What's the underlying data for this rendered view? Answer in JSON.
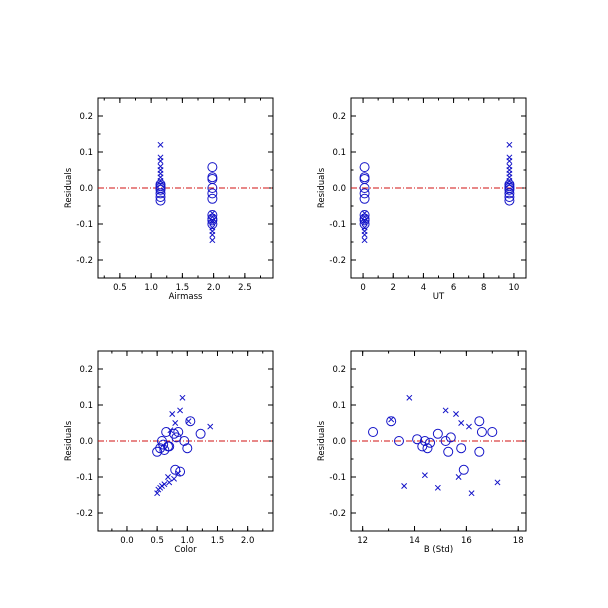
{
  "colors": {
    "marker": "#1414c8",
    "zero_line": "#d01010",
    "axis": "#000000"
  },
  "chart_data": [
    {
      "type": "scatter",
      "xlabel": "Airmass",
      "ylabel": "Residuals",
      "xlim": [
        0.15,
        2.95
      ],
      "ylim": [
        -0.25,
        0.25
      ],
      "xticks": [
        0.5,
        1.0,
        1.5,
        2.0,
        2.5
      ],
      "xtick_labels": [
        "0.5",
        "1.0",
        "1.5",
        "2.0",
        "2.5"
      ],
      "yticks": [
        -0.2,
        -0.1,
        0.0,
        0.1,
        0.2
      ],
      "ytick_labels": [
        "-0.2",
        "-0.1",
        "0.0",
        "0.1",
        "0.2"
      ],
      "reference_line_y": 0.0,
      "series": [
        {
          "marker": "x",
          "x": [
            1.15,
            1.15,
            1.15,
            1.15,
            1.15,
            1.15,
            1.15,
            1.15,
            1.15,
            1.98,
            1.98,
            1.98,
            1.98,
            1.98,
            1.98,
            1.98,
            1.98
          ],
          "y": [
            0.12,
            0.085,
            0.075,
            0.06,
            0.05,
            0.04,
            0.03,
            0.02,
            0.01,
            -0.145,
            -0.13,
            -0.12,
            -0.11,
            -0.095,
            -0.09,
            -0.08,
            -0.07
          ]
        },
        {
          "marker": "o",
          "x": [
            1.15,
            1.15,
            1.15,
            1.15,
            1.15,
            1.15,
            1.15,
            1.98,
            1.98,
            1.98,
            1.98,
            1.98,
            1.98,
            1.98,
            1.98,
            1.98,
            1.98
          ],
          "y": [
            0.01,
            0.005,
            0.0,
            -0.005,
            -0.015,
            -0.025,
            -0.035,
            0.058,
            0.03,
            0.025,
            0.0,
            -0.015,
            -0.03,
            -0.075,
            -0.085,
            -0.09,
            -0.1
          ]
        }
      ]
    },
    {
      "type": "scatter",
      "xlabel": "UT",
      "ylabel": "Residuals",
      "xlim": [
        -0.8,
        10.8
      ],
      "ylim": [
        -0.25,
        0.25
      ],
      "xticks": [
        0,
        2,
        4,
        6,
        8,
        10
      ],
      "xtick_labels": [
        "0",
        "2",
        "4",
        "6",
        "8",
        "10"
      ],
      "yticks": [
        -0.2,
        -0.1,
        0.0,
        0.1,
        0.2
      ],
      "ytick_labels": [
        "-0.2",
        "-0.1",
        "0.0",
        "0.1",
        "0.2"
      ],
      "reference_line_y": 0.0,
      "series": [
        {
          "marker": "x",
          "x": [
            9.7,
            9.7,
            9.7,
            9.7,
            9.7,
            9.7,
            9.7,
            9.7,
            9.7,
            0.1,
            0.1,
            0.1,
            0.1,
            0.1,
            0.1,
            0.1,
            0.1
          ],
          "y": [
            0.12,
            0.085,
            0.075,
            0.06,
            0.05,
            0.04,
            0.03,
            0.02,
            0.01,
            -0.145,
            -0.13,
            -0.12,
            -0.11,
            -0.095,
            -0.09,
            -0.08,
            -0.07
          ]
        },
        {
          "marker": "o",
          "x": [
            9.7,
            9.7,
            9.7,
            9.7,
            9.7,
            9.7,
            9.7,
            0.1,
            0.1,
            0.1,
            0.1,
            0.1,
            0.1,
            0.1,
            0.1,
            0.1,
            0.1
          ],
          "y": [
            0.01,
            0.005,
            0.0,
            -0.005,
            -0.015,
            -0.025,
            -0.035,
            0.058,
            0.03,
            0.025,
            0.0,
            -0.015,
            -0.03,
            -0.075,
            -0.085,
            -0.09,
            -0.1
          ]
        }
      ]
    },
    {
      "type": "scatter",
      "xlabel": "Color",
      "ylabel": "Residuals",
      "xlim": [
        -0.48,
        2.42
      ],
      "ylim": [
        -0.25,
        0.25
      ],
      "xticks": [
        0.0,
        0.5,
        1.0,
        1.5,
        2.0
      ],
      "xtick_labels": [
        "0.0",
        "0.5",
        "1.0",
        "1.5",
        "2.0"
      ],
      "yticks": [
        -0.2,
        -0.1,
        0.0,
        0.1,
        0.2
      ],
      "ytick_labels": [
        "-0.2",
        "-0.1",
        "0.0",
        "0.1",
        "0.2"
      ],
      "reference_line_y": 0.0,
      "series": [
        {
          "marker": "x",
          "x": [
            0.92,
            0.75,
            0.88,
            1.02,
            1.38,
            0.8,
            0.72,
            0.68,
            0.55,
            0.58,
            0.62,
            0.7,
            0.78,
            0.85,
            0.5,
            0.52
          ],
          "y": [
            0.12,
            0.075,
            0.085,
            0.055,
            0.04,
            0.05,
            0.03,
            -0.1,
            -0.13,
            -0.125,
            -0.12,
            -0.115,
            -0.105,
            -0.09,
            -0.145,
            -0.135
          ]
        },
        {
          "marker": "o",
          "x": [
            0.5,
            0.55,
            0.6,
            0.65,
            0.7,
            0.78,
            0.82,
            0.85,
            0.88,
            0.95,
            1.0,
            1.05,
            1.22,
            0.58,
            0.62,
            0.68,
            0.8
          ],
          "y": [
            -0.03,
            -0.02,
            -0.01,
            0.025,
            -0.015,
            0.02,
            0.01,
            0.025,
            -0.085,
            0.0,
            -0.02,
            0.055,
            0.02,
            0.0,
            -0.025,
            -0.015,
            -0.08
          ]
        }
      ]
    },
    {
      "type": "scatter",
      "xlabel": "B (Std)",
      "ylabel": "Residuals",
      "xlim": [
        11.55,
        18.3
      ],
      "ylim": [
        -0.25,
        0.25
      ],
      "xticks": [
        12,
        14,
        16,
        18
      ],
      "xtick_labels": [
        "12",
        "14",
        "16",
        "18"
      ],
      "yticks": [
        -0.2,
        -0.1,
        0.0,
        0.1,
        0.2
      ],
      "ytick_labels": [
        "-0.2",
        "-0.1",
        "0.0",
        "0.1",
        "0.2"
      ],
      "reference_line_y": 0.0,
      "series": [
        {
          "marker": "x",
          "x": [
            13.8,
            13.1,
            15.2,
            15.6,
            14.4,
            15.8,
            16.1,
            17.2,
            13.6,
            14.9,
            15.7,
            16.2
          ],
          "y": [
            0.12,
            0.06,
            0.085,
            0.075,
            -0.095,
            0.05,
            0.04,
            -0.115,
            -0.125,
            -0.13,
            -0.1,
            -0.145
          ]
        },
        {
          "marker": "o",
          "x": [
            12.4,
            13.1,
            13.4,
            14.1,
            14.4,
            14.6,
            14.9,
            15.2,
            15.4,
            15.8,
            16.5,
            16.6,
            17.0,
            14.3,
            14.5,
            15.3,
            15.9,
            16.5
          ],
          "y": [
            0.025,
            0.055,
            0.0,
            0.005,
            0.0,
            -0.005,
            0.02,
            0.0,
            0.01,
            -0.02,
            0.055,
            0.025,
            0.025,
            -0.015,
            -0.02,
            -0.03,
            -0.08,
            -0.03
          ]
        }
      ]
    }
  ]
}
